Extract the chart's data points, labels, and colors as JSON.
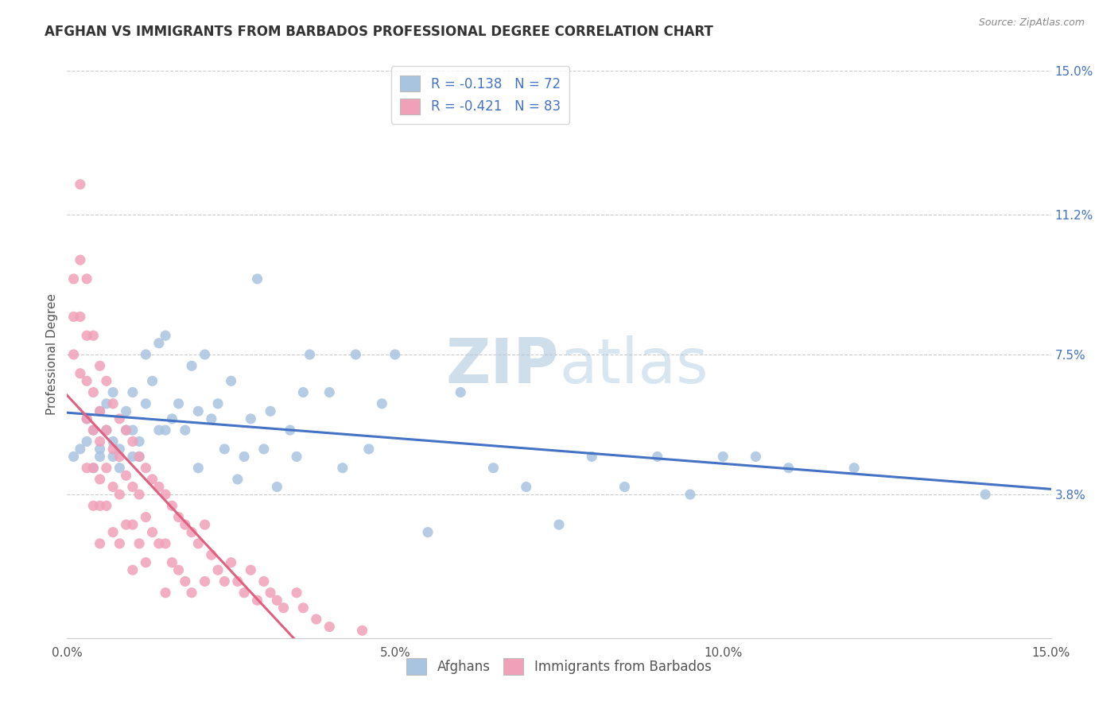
{
  "title": "AFGHAN VS IMMIGRANTS FROM BARBADOS PROFESSIONAL DEGREE CORRELATION CHART",
  "source": "Source: ZipAtlas.com",
  "ylabel": "Professional Degree",
  "x_min": 0.0,
  "x_max": 0.15,
  "y_min": 0.0,
  "y_max": 0.15,
  "y_ticks": [
    0.0,
    0.038,
    0.075,
    0.112,
    0.15
  ],
  "y_tick_labels": [
    "",
    "3.8%",
    "7.5%",
    "11.2%",
    "15.0%"
  ],
  "x_ticks": [
    0.0,
    0.05,
    0.1,
    0.15
  ],
  "x_tick_labels": [
    "0.0%",
    "5.0%",
    "10.0%",
    "15.0%"
  ],
  "legend1_label": "R = -0.138   N = 72",
  "legend2_label": "R = -0.421   N = 83",
  "color_afghan": "#a8c4e0",
  "color_barbados": "#f0a0b8",
  "color_line_afghan": "#4472c4",
  "color_line_barbados": "#e06080",
  "afghans_x": [
    0.001,
    0.002,
    0.003,
    0.003,
    0.004,
    0.004,
    0.005,
    0.005,
    0.005,
    0.006,
    0.006,
    0.007,
    0.007,
    0.007,
    0.008,
    0.008,
    0.009,
    0.009,
    0.01,
    0.01,
    0.01,
    0.011,
    0.011,
    0.012,
    0.012,
    0.013,
    0.014,
    0.014,
    0.015,
    0.015,
    0.016,
    0.017,
    0.018,
    0.019,
    0.02,
    0.02,
    0.021,
    0.022,
    0.023,
    0.024,
    0.025,
    0.026,
    0.027,
    0.028,
    0.029,
    0.03,
    0.031,
    0.032,
    0.034,
    0.035,
    0.036,
    0.037,
    0.04,
    0.042,
    0.044,
    0.046,
    0.048,
    0.05,
    0.055,
    0.06,
    0.065,
    0.07,
    0.075,
    0.08,
    0.085,
    0.09,
    0.095,
    0.1,
    0.105,
    0.11,
    0.12,
    0.14
  ],
  "afghans_y": [
    0.048,
    0.05,
    0.052,
    0.058,
    0.045,
    0.055,
    0.05,
    0.06,
    0.048,
    0.055,
    0.062,
    0.048,
    0.052,
    0.065,
    0.05,
    0.045,
    0.055,
    0.06,
    0.048,
    0.055,
    0.065,
    0.048,
    0.052,
    0.075,
    0.062,
    0.068,
    0.055,
    0.078,
    0.055,
    0.08,
    0.058,
    0.062,
    0.055,
    0.072,
    0.045,
    0.06,
    0.075,
    0.058,
    0.062,
    0.05,
    0.068,
    0.042,
    0.048,
    0.058,
    0.095,
    0.05,
    0.06,
    0.04,
    0.055,
    0.048,
    0.065,
    0.075,
    0.065,
    0.045,
    0.075,
    0.05,
    0.062,
    0.075,
    0.028,
    0.065,
    0.045,
    0.04,
    0.03,
    0.048,
    0.04,
    0.048,
    0.038,
    0.048,
    0.048,
    0.045,
    0.045,
    0.038
  ],
  "barbados_x": [
    0.001,
    0.001,
    0.001,
    0.002,
    0.002,
    0.002,
    0.002,
    0.003,
    0.003,
    0.003,
    0.003,
    0.003,
    0.004,
    0.004,
    0.004,
    0.004,
    0.004,
    0.005,
    0.005,
    0.005,
    0.005,
    0.005,
    0.005,
    0.006,
    0.006,
    0.006,
    0.006,
    0.007,
    0.007,
    0.007,
    0.007,
    0.008,
    0.008,
    0.008,
    0.008,
    0.009,
    0.009,
    0.009,
    0.01,
    0.01,
    0.01,
    0.01,
    0.011,
    0.011,
    0.011,
    0.012,
    0.012,
    0.012,
    0.013,
    0.013,
    0.014,
    0.014,
    0.015,
    0.015,
    0.015,
    0.016,
    0.016,
    0.017,
    0.017,
    0.018,
    0.018,
    0.019,
    0.019,
    0.02,
    0.021,
    0.021,
    0.022,
    0.023,
    0.024,
    0.025,
    0.026,
    0.027,
    0.028,
    0.029,
    0.03,
    0.031,
    0.032,
    0.033,
    0.035,
    0.036,
    0.038,
    0.04,
    0.045
  ],
  "barbados_y": [
    0.095,
    0.085,
    0.075,
    0.12,
    0.1,
    0.085,
    0.07,
    0.095,
    0.08,
    0.068,
    0.058,
    0.045,
    0.08,
    0.065,
    0.055,
    0.045,
    0.035,
    0.072,
    0.06,
    0.052,
    0.042,
    0.035,
    0.025,
    0.068,
    0.055,
    0.045,
    0.035,
    0.062,
    0.05,
    0.04,
    0.028,
    0.058,
    0.048,
    0.038,
    0.025,
    0.055,
    0.043,
    0.03,
    0.052,
    0.04,
    0.03,
    0.018,
    0.048,
    0.038,
    0.025,
    0.045,
    0.032,
    0.02,
    0.042,
    0.028,
    0.04,
    0.025,
    0.038,
    0.025,
    0.012,
    0.035,
    0.02,
    0.032,
    0.018,
    0.03,
    0.015,
    0.028,
    0.012,
    0.025,
    0.03,
    0.015,
    0.022,
    0.018,
    0.015,
    0.02,
    0.015,
    0.012,
    0.018,
    0.01,
    0.015,
    0.012,
    0.01,
    0.008,
    0.012,
    0.008,
    0.005,
    0.003,
    0.002
  ]
}
